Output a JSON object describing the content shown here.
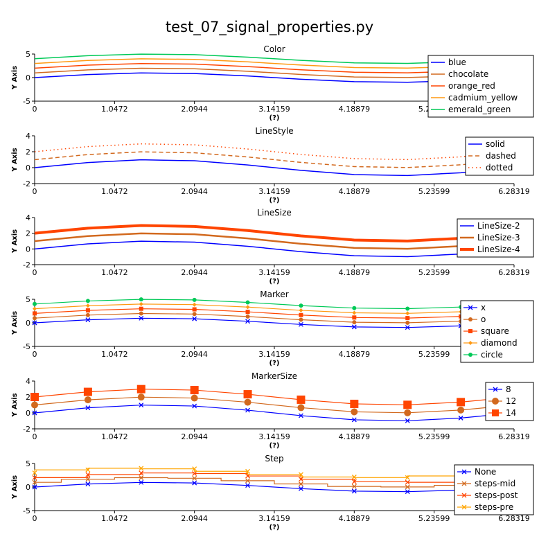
{
  "figure": {
    "title": "test_07_signal_properties.py"
  },
  "colors": {
    "blue": "#0000ff",
    "chocolate": "#d2691e",
    "orange_red": "#ff4500",
    "cadmium_yellow": "#ff9912",
    "emerald_green": "#00c957",
    "step_pre": "#ffa500"
  },
  "chart_data": [
    {
      "type": "line",
      "title": "Color",
      "xlabel": "(?)",
      "ylabel": "Y Axis",
      "xlim": [
        0,
        6.28319
      ],
      "ylim": [
        -5,
        5
      ],
      "xticks": [
        "0",
        "1.0472",
        "2.0944",
        "3.14159",
        "4.18879",
        "5.23599",
        "6.28319"
      ],
      "yticks": [
        "-5",
        "0",
        "5"
      ],
      "legend": "top-right",
      "x": [
        0,
        0.69813,
        1.39626,
        2.0944,
        2.79253,
        3.49066,
        4.18879,
        4.88692,
        5.58505,
        6.28319
      ],
      "series": [
        {
          "name": "blue",
          "offset": 0,
          "color": "#0000ff",
          "width": 1.5,
          "dash": ""
        },
        {
          "name": "chocolate",
          "offset": 1,
          "color": "#d2691e",
          "width": 1.5,
          "dash": ""
        },
        {
          "name": "orange_red",
          "offset": 2,
          "color": "#ff4500",
          "width": 1.5,
          "dash": ""
        },
        {
          "name": "cadmium_yellow",
          "offset": 3,
          "color": "#ff9912",
          "width": 1.5,
          "dash": ""
        },
        {
          "name": "emerald_green",
          "offset": 4,
          "color": "#00c957",
          "width": 1.5,
          "dash": ""
        }
      ]
    },
    {
      "type": "line",
      "title": "LineStyle",
      "xlabel": "(?)",
      "ylabel": "Y Axis",
      "xlim": [
        0,
        6.28319
      ],
      "ylim": [
        -2,
        4
      ],
      "xticks": [
        "0",
        "1.0472",
        "2.0944",
        "3.14159",
        "4.18879",
        "5.23599",
        "6.28319"
      ],
      "yticks": [
        "-2",
        "0",
        "2",
        "4"
      ],
      "legend": "top-right",
      "x": [
        0,
        0.69813,
        1.39626,
        2.0944,
        2.79253,
        3.49066,
        4.18879,
        4.88692,
        5.58505,
        6.28319
      ],
      "series": [
        {
          "name": "solid",
          "offset": 0,
          "color": "#0000ff",
          "width": 1.5,
          "dash": ""
        },
        {
          "name": "dashed",
          "offset": 1,
          "color": "#d2691e",
          "width": 1.5,
          "dash": "6,4"
        },
        {
          "name": "dotted",
          "offset": 2,
          "color": "#ff4500",
          "width": 1.5,
          "dash": "1.5,4"
        }
      ]
    },
    {
      "type": "line",
      "title": "LineSize",
      "xlabel": "(?)",
      "ylabel": "Y Axis",
      "xlim": [
        0,
        6.28319
      ],
      "ylim": [
        -2,
        4
      ],
      "xticks": [
        "0",
        "1.0472",
        "2.0944",
        "3.14159",
        "4.18879",
        "5.23599",
        "6.28319"
      ],
      "yticks": [
        "-2",
        "0",
        "2",
        "4"
      ],
      "legend": "top-right",
      "x": [
        0,
        0.69813,
        1.39626,
        2.0944,
        2.79253,
        3.49066,
        4.18879,
        4.88692,
        5.58505,
        6.28319
      ],
      "series": [
        {
          "name": "LineSize-2",
          "offset": 0,
          "color": "#0000ff",
          "width": 1.5,
          "dash": ""
        },
        {
          "name": "LineSize-3",
          "offset": 1,
          "color": "#d2691e",
          "width": 2.5,
          "dash": ""
        },
        {
          "name": "LineSize-4",
          "offset": 2,
          "color": "#ff4500",
          "width": 4,
          "dash": ""
        }
      ]
    },
    {
      "type": "line",
      "title": "Marker",
      "xlabel": "(?)",
      "ylabel": "Y Axis",
      "xlim": [
        0,
        6.28319
      ],
      "ylim": [
        -5,
        5
      ],
      "xticks": [
        "0",
        "1.0472",
        "2.0944",
        "3.14159",
        "4.18879",
        "5.23599",
        "6.28319"
      ],
      "yticks": [
        "-5",
        "0",
        "5"
      ],
      "legend": "top-right",
      "x": [
        0,
        0.69813,
        1.39626,
        2.0944,
        2.79253,
        3.49066,
        4.18879,
        4.88692,
        5.58505,
        6.28319
      ],
      "series": [
        {
          "name": "x",
          "offset": 0,
          "color": "#0000ff",
          "width": 1.2,
          "dash": "",
          "marker": "x",
          "msize": 6
        },
        {
          "name": "o",
          "offset": 1,
          "color": "#d2691e",
          "width": 1.2,
          "dash": "",
          "marker": "circle",
          "msize": 6
        },
        {
          "name": "square",
          "offset": 2,
          "color": "#ff4500",
          "width": 1.2,
          "dash": "",
          "marker": "square",
          "msize": 6
        },
        {
          "name": "diamond",
          "offset": 3,
          "color": "#ff9912",
          "width": 1.2,
          "dash": "",
          "marker": "diamond",
          "msize": 6
        },
        {
          "name": "circle",
          "offset": 4,
          "color": "#00c957",
          "width": 1.2,
          "dash": "",
          "marker": "circle",
          "msize": 6
        }
      ]
    },
    {
      "type": "line",
      "title": "MarkerSize",
      "xlabel": "(?)",
      "ylabel": "Y Axis",
      "xlim": [
        0,
        6.28319
      ],
      "ylim": [
        -2,
        4
      ],
      "xticks": [
        "0",
        "1.0472",
        "2.0944",
        "3.14159",
        "4.18879",
        "5.23599",
        "6.28319"
      ],
      "yticks": [
        "-2",
        "0",
        "2",
        "4"
      ],
      "legend": "top-right",
      "x": [
        0,
        0.69813,
        1.39626,
        2.0944,
        2.79253,
        3.49066,
        4.18879,
        4.88692,
        5.58505,
        6.28319
      ],
      "series": [
        {
          "name": "8",
          "offset": 0,
          "color": "#0000ff",
          "width": 1.2,
          "dash": "",
          "marker": "x",
          "msize": 6
        },
        {
          "name": "12",
          "offset": 1,
          "color": "#d2691e",
          "width": 1.2,
          "dash": "",
          "marker": "circle",
          "msize": 10
        },
        {
          "name": "14",
          "offset": 2,
          "color": "#ff4500",
          "width": 1.2,
          "dash": "",
          "marker": "square",
          "msize": 12
        }
      ]
    },
    {
      "type": "line",
      "title": "Step",
      "xlabel": "(?)",
      "ylabel": "Y Axis",
      "xlim": [
        0,
        6.28319
      ],
      "ylim": [
        -5,
        5
      ],
      "xticks": [
        "0",
        "1.0472",
        "2.0944",
        "3.14159",
        "4.18879",
        "5.23599",
        "6.28319"
      ],
      "yticks": [
        "-5",
        "0",
        "5"
      ],
      "legend": "top-right",
      "x": [
        0,
        0.69813,
        1.39626,
        2.0944,
        2.79253,
        3.49066,
        4.18879,
        4.88692,
        5.58505,
        6.28319
      ],
      "series": [
        {
          "name": "None",
          "offset": 0,
          "color": "#0000ff",
          "width": 1.2,
          "dash": "",
          "marker": "x",
          "msize": 6,
          "step": "none"
        },
        {
          "name": "steps-mid",
          "offset": 1,
          "color": "#d2691e",
          "width": 1.2,
          "dash": "",
          "marker": "x",
          "msize": 6,
          "step": "mid"
        },
        {
          "name": "steps-post",
          "offset": 2,
          "color": "#ff4500",
          "width": 1.2,
          "dash": "",
          "marker": "x",
          "msize": 6,
          "step": "post"
        },
        {
          "name": "steps-pre",
          "offset": 3,
          "color": "#ffa500",
          "width": 1.2,
          "dash": "",
          "marker": "x",
          "msize": 6,
          "step": "pre"
        }
      ]
    }
  ]
}
